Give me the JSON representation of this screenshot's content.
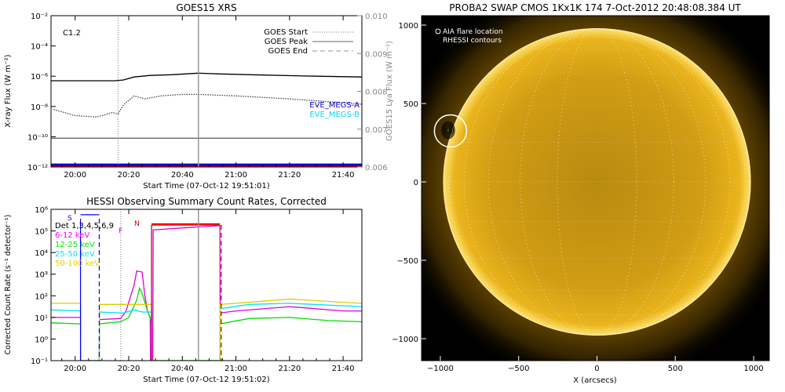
{
  "chart_data": [
    {
      "type": "line",
      "title": "GOES15 XRS",
      "xlabel": "Start Time (07-Oct-12 19:51:01)",
      "ylabel": "X-ray Flux (W m⁻²)",
      "y2label": "GOES15 Lya Flux (W m⁻²)",
      "xticks": [
        "20:00",
        "20:20",
        "20:40",
        "21:00",
        "21:20",
        "21:40"
      ],
      "yticks": [
        "10⁻¹²",
        "10⁻¹⁰",
        "10⁻⁸",
        "10⁻⁶",
        "10⁻⁴",
        "10⁻²"
      ],
      "y2ticks": [
        "0.006",
        "0.007",
        "0.008",
        "0.009",
        "0.010"
      ],
      "xlim_min": [
        1191,
        1307
      ],
      "ylim_log10": [
        -12,
        -2
      ],
      "y2lim": [
        0.006,
        0.01
      ],
      "annotation": "C1.2",
      "legend": [
        "GOES Start",
        "GOES Peak",
        "GOES End"
      ],
      "legend_position": "top-right",
      "right_labels": [
        "EVE_MEGS-A",
        "EVE_MEGS-B"
      ],
      "markers": {
        "start": 1216,
        "peak": 1246
      },
      "series": [
        {
          "name": "",
          "color": "#000000",
          "x": [
            1191,
            1215,
            1218,
            1222,
            1228,
            1236,
            1246,
            1254,
            1270,
            1290,
            1307
          ],
          "y_log10": [
            -6.3,
            -6.3,
            -6.25,
            -6.05,
            -5.95,
            -5.9,
            -5.8,
            -5.85,
            -5.92,
            -6.0,
            -6.05
          ]
        },
        {
          "name": "",
          "color": "#444444",
          "x": [
            1192,
            1200,
            1208,
            1214,
            1216,
            1218,
            1222,
            1226,
            1232,
            1240,
            1246,
            1260,
            1280,
            1300,
            1307
          ],
          "y_log10": [
            -8.2,
            -8.6,
            -8.7,
            -8.4,
            -8.5,
            -7.9,
            -7.3,
            -7.5,
            -7.3,
            -7.2,
            -7.2,
            -7.3,
            -7.5,
            -7.75,
            -7.85
          ]
        },
        {
          "name": "",
          "color": "#666666",
          "x": [
            1191,
            1307
          ],
          "y_log10": [
            -10.1,
            -10.1
          ]
        },
        {
          "name": "",
          "color": "#0000cc",
          "x": [
            1191,
            1307
          ],
          "y_log10": [
            -11.85,
            -11.85
          ]
        },
        {
          "name": "",
          "color": "#ff0000",
          "x": [
            1191,
            1307
          ],
          "y_log10": [
            -12.0,
            -12.0
          ]
        }
      ]
    },
    {
      "type": "line",
      "title": "HESSI Observing Summary Count Rates, Corrected",
      "xlabel": "Start Time (07-Oct-12 19:51:02)",
      "ylabel": "Corrected Count Rate (s⁻¹ detector⁻¹)",
      "xticks": [
        "20:00",
        "20:20",
        "20:40",
        "21:00",
        "21:20",
        "21:40"
      ],
      "yticks": [
        "10⁻¹",
        "10⁰",
        "10¹",
        "10²",
        "10³",
        "10⁴",
        "10⁵",
        "10⁶"
      ],
      "xlim_min": [
        1191,
        1307
      ],
      "ylim_log10": [
        -1,
        6
      ],
      "legend": [
        "Det 1,3,4,5,6,9",
        "6-12 keV",
        "12-25 keV",
        "25-50 keV",
        "50-100 keV"
      ],
      "legend_colors": [
        "#000000",
        "#ff00ff",
        "#00ff00",
        "#00e5ff",
        "#e6d200"
      ],
      "legend_position": "top-left",
      "flag_labels": [
        "S",
        "F",
        "N"
      ],
      "series": [
        {
          "name": "6-12 keV",
          "color": "#dd00dd",
          "x": [
            1191,
            1202,
            1202.1,
            1209,
            1209.1,
            1217,
            1219,
            1222,
            1223,
            1225,
            1226,
            1227,
            1228,
            1228.1,
            1229,
            1229.1,
            1254,
            1254.1,
            1260,
            1280,
            1300,
            1307
          ],
          "y_log10": [
            1.0,
            1.0,
            -1,
            -1,
            0.9,
            0.95,
            1.3,
            2.5,
            3.15,
            3.1,
            2.0,
            1.3,
            1.0,
            -1,
            -1,
            5.05,
            5.25,
            1.2,
            1.3,
            1.5,
            1.3,
            1.3
          ]
        },
        {
          "name": "12-25 keV",
          "color": "#00dd00",
          "x": [
            1191,
            1202,
            1202.1,
            1209,
            1209.1,
            1217,
            1220,
            1223,
            1224,
            1225,
            1227,
            1228.5,
            1228.6,
            1254,
            1254.1,
            1265,
            1280,
            1295,
            1307
          ],
          "y_log10": [
            0.75,
            0.7,
            -1,
            -1,
            0.7,
            0.8,
            1.0,
            1.8,
            2.35,
            2.1,
            1.3,
            0.8,
            -1,
            -1,
            0.7,
            0.95,
            1.0,
            0.85,
            0.8
          ]
        },
        {
          "name": "25-50 keV",
          "color": "#00e0ff",
          "x": [
            1191,
            1202,
            1202.1,
            1209,
            1209.1,
            1218,
            1222,
            1225,
            1228.5,
            1228.6,
            1254,
            1254.1,
            1265,
            1280,
            1307
          ],
          "y_log10": [
            1.35,
            1.3,
            -1,
            -1,
            1.25,
            1.2,
            1.35,
            1.25,
            1.25,
            -1,
            -1,
            1.4,
            1.6,
            1.65,
            1.5
          ]
        },
        {
          "name": "50-100 keV",
          "color": "#e0cc00",
          "x": [
            1191,
            1202,
            1202.1,
            1209,
            1209.1,
            1222,
            1228.5,
            1228.6,
            1254,
            1254.1,
            1270,
            1280,
            1300,
            1307
          ],
          "y_log10": [
            1.65,
            1.65,
            -1,
            -1,
            1.6,
            1.6,
            1.6,
            -1,
            -1,
            1.6,
            1.75,
            1.85,
            1.7,
            1.65
          ]
        },
        {
          "name": "",
          "color": "#ff0000",
          "x": [
            1228.5,
            1254
          ],
          "y_log10": [
            5.3,
            5.3
          ]
        },
        {
          "name": "",
          "color": "#0000ff",
          "x": [
            1202,
            1209
          ],
          "y_log10": [
            5.75,
            5.75
          ]
        }
      ],
      "markers": {
        "attenuator": [
          1202,
          1209
        ],
        "red": [
          1228.5,
          1254.5
        ],
        "peak": 1246,
        "start": 1217
      }
    },
    {
      "type": "heatmap",
      "title": "PROBA2 SWAP CMOS 1Kx1K 174  7-Oct-2012 20:48:08.384 UT",
      "xlabel": "X (arcsecs)",
      "ylabel": "",
      "xticks": [
        "−1000",
        "−500",
        "0",
        "500",
        "1000"
      ],
      "yticks": [
        "−1000",
        "−500",
        "0",
        "500",
        "1000"
      ],
      "xlim": [
        -1120,
        1100
      ],
      "ylim": [
        -1140,
        1060
      ],
      "solar_radius_arcsec": 980,
      "legend": [
        "AIA flare location",
        "RHESSI contours"
      ],
      "legend_position": "top-left",
      "flare_location": {
        "x": -935,
        "y": 325
      },
      "colors": {
        "sun": "#d9a311",
        "limb": "#ffe066",
        "background": "#000000"
      }
    }
  ]
}
